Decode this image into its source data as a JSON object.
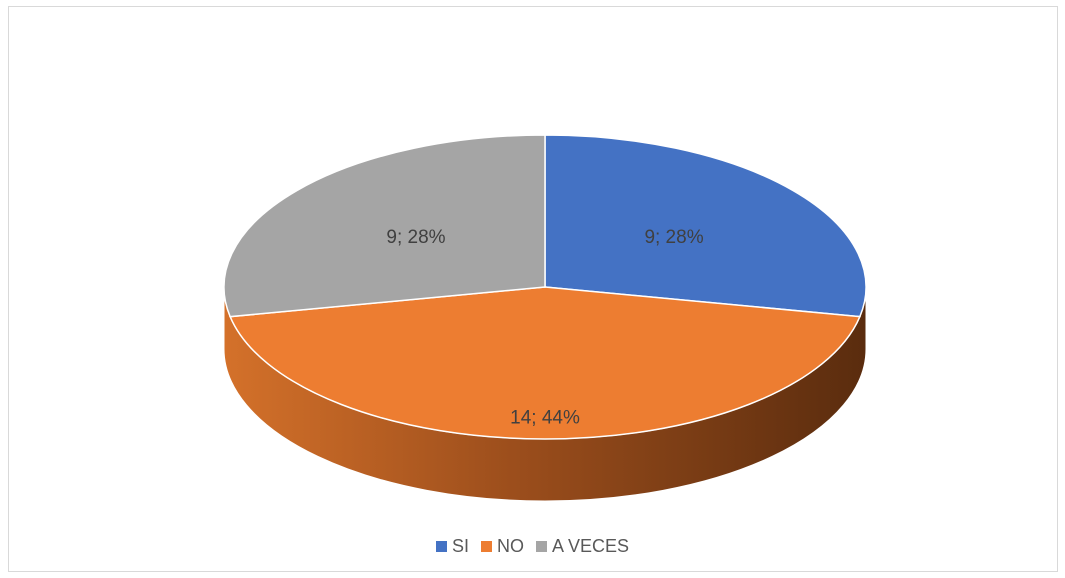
{
  "chart_data": {
    "type": "pie",
    "categories": [
      "SI",
      "NO",
      "A VECES"
    ],
    "values": [
      9,
      14,
      9
    ],
    "percentages": [
      28,
      44,
      28
    ],
    "data_labels": [
      "9; 28%",
      "14; 44%",
      "9; 28%"
    ],
    "colors": [
      "#4472C4",
      "#ED7D31",
      "#A5A5A5"
    ],
    "legend_position": "bottom",
    "style": "3d"
  }
}
